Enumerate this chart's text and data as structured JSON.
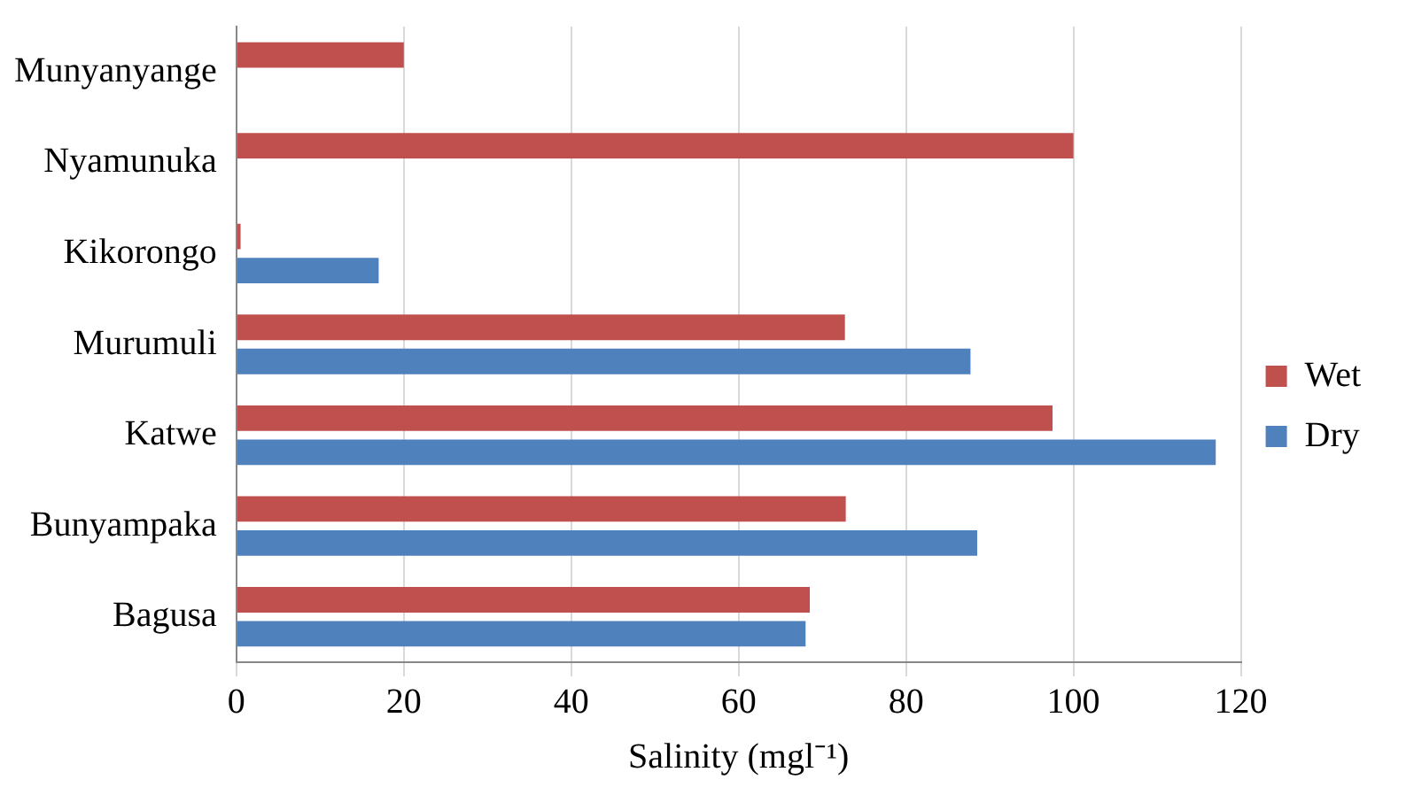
{
  "chart_data": {
    "type": "bar",
    "orientation": "horizontal",
    "xlabel": "Salinity (mgl⁻¹)",
    "categories": [
      "Munyanyange",
      "Nyamunuka",
      "Kikorongo",
      "Murumuli",
      "Katwe",
      "Bunyampaka",
      "Bagusa"
    ],
    "series": [
      {
        "name": "Wet",
        "color": "#c0504d",
        "values": [
          20,
          100,
          0.5,
          72.7,
          97.5,
          72.8,
          68.5
        ]
      },
      {
        "name": "Dry",
        "color": "#4f81bd",
        "values": [
          null,
          null,
          17,
          87.7,
          117,
          88.5,
          68
        ]
      }
    ],
    "xlim": [
      0,
      120
    ],
    "xticks": [
      0,
      20,
      40,
      60,
      80,
      100,
      120
    ],
    "grid": "x",
    "legend": "right"
  }
}
